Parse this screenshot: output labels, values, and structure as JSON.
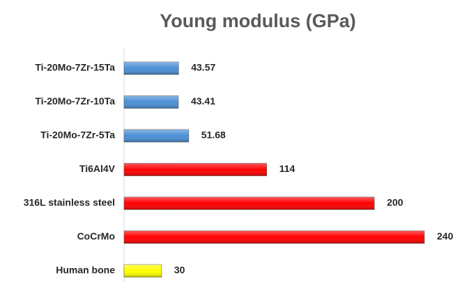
{
  "chart_data": {
    "type": "bar",
    "orientation": "horizontal",
    "title": "Young modulus (GPa)",
    "categories": [
      "Ti-20Mo-7Zr-15Ta",
      "Ti-20Mo-7Zr-10Ta",
      "Ti-20Mo-7Zr-5Ta",
      "Ti6Al4V",
      "316L stainless steel",
      "CoCrMo",
      "Human bone"
    ],
    "values": [
      43.57,
      43.41,
      51.68,
      114,
      200,
      240,
      30
    ],
    "colors": [
      "#4a8fd6",
      "#4a8fd6",
      "#4a8fd6",
      "#ff0000",
      "#ff0000",
      "#ff0000",
      "#ffff00"
    ]
  }
}
